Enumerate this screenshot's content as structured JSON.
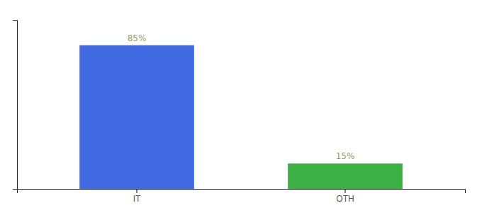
{
  "chart_data": {
    "type": "bar",
    "categories": [
      "IT",
      "OTH"
    ],
    "values": [
      85,
      15
    ],
    "value_labels": [
      "85%",
      "15%"
    ],
    "colors": [
      "#4169e1",
      "#3cb043"
    ],
    "ylim": [
      0,
      100
    ],
    "data_labels": true,
    "tick_labels": "x"
  }
}
